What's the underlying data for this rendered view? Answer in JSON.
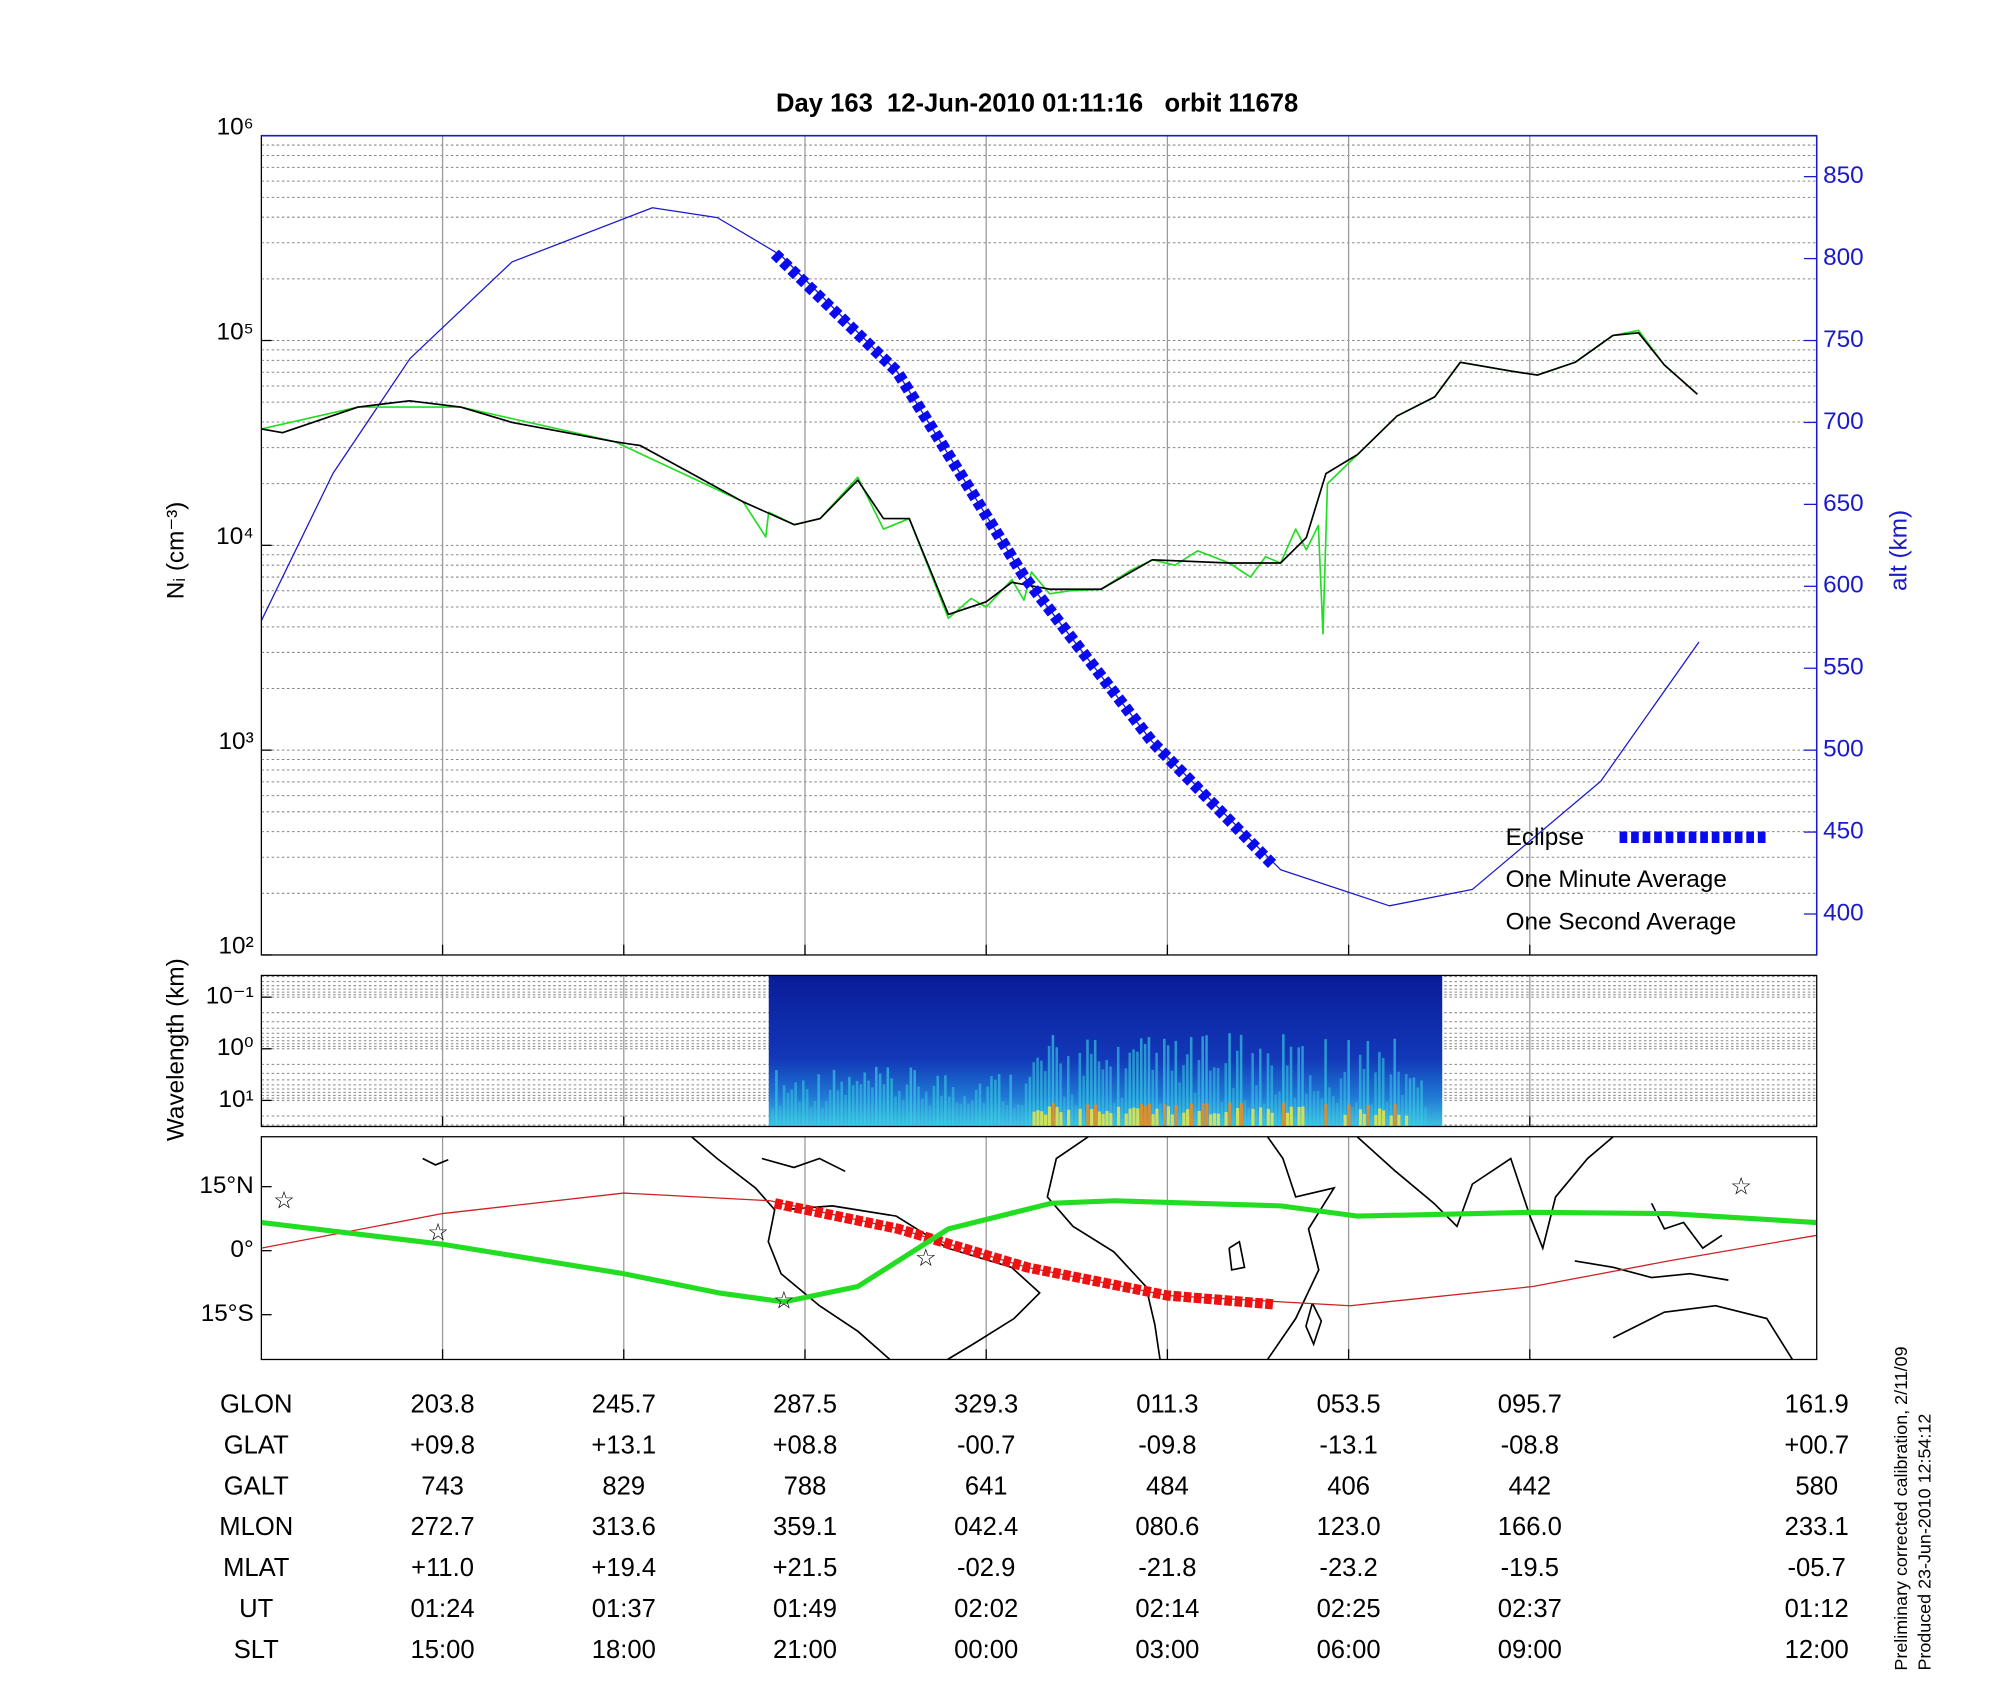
{
  "chart_data": [
    {
      "type": "line",
      "title": "Day 163  12-Jun-2010 01:11:16   orbit 11678",
      "ylabel": "Nᵢ (cm⁻³)",
      "y2label": "alt (km)",
      "log_y": true,
      "ylim": [
        100,
        1000000
      ],
      "yticks": [
        {
          "value": 100,
          "label": "10²"
        },
        {
          "value": 1000,
          "label": "10³"
        },
        {
          "value": 10000,
          "label": "10⁴"
        },
        {
          "value": 100000,
          "label": "10⁵"
        },
        {
          "value": 1000000,
          "label": "10⁶"
        }
      ],
      "y2lim": [
        375,
        875
      ],
      "y2ticks": [
        400,
        450,
        500,
        550,
        600,
        650,
        700,
        750,
        800,
        850
      ],
      "xlim": [
        0,
        103
      ],
      "xticks": [
        12,
        24,
        36,
        48,
        60,
        72,
        84
      ],
      "grid": true,
      "legend": "lower right",
      "series": [
        {
          "name": "Eclipse",
          "color": "#0a0aee",
          "axis": "y2",
          "dashed": true,
          "x": [
            34.0,
            42.1,
            50.5,
            59.0,
            67.1
          ],
          "values": [
            803,
            731,
            606,
            505,
            429
          ]
        },
        {
          "name": "One Minute Average",
          "color": "#000000",
          "x": [
            0,
            1.4,
            6.4,
            9.8,
            13.2,
            16.6,
            23.4,
            25.1,
            28.5,
            31.9,
            35.3,
            37.0,
            39.5,
            41.2,
            42.9,
            45.5,
            48.0,
            49.7,
            52.2,
            55.6,
            59.0,
            64.1,
            67.5,
            69.2,
            70.5,
            72.6,
            75.2,
            77.7,
            79.4,
            82.8,
            84.5,
            87.0,
            89.5,
            91.2,
            92.9,
            95.1
          ],
          "values": [
            37000,
            35500,
            47300,
            50800,
            47300,
            39800,
            32100,
            30700,
            22400,
            16300,
            12600,
            13500,
            20800,
            13500,
            13500,
            4600,
            5300,
            6600,
            6100,
            6100,
            8500,
            8200,
            8200,
            10900,
            22400,
            27800,
            42800,
            53100,
            78300,
            70800,
            67800,
            78300,
            106000,
            109000,
            76100,
            54600
          ]
        },
        {
          "name": "One Second Average",
          "color": "#22dd22",
          "x": [
            0,
            6.4,
            13.2,
            23.4,
            31.9,
            33.4,
            33.6,
            35.3,
            37.0,
            39.5,
            41.2,
            42.9,
            45.5,
            47.0,
            48.0,
            49.7,
            50.5,
            51.0,
            52.2,
            53.5,
            55.6,
            57.5,
            59.0,
            60.5,
            62.0,
            64.1,
            65.5,
            66.5,
            67.5,
            68.5,
            69.2,
            70.0,
            70.3,
            70.6,
            72.6,
            75.2,
            77.7,
            79.4,
            82.8,
            84.5,
            87.0,
            89.5,
            91.2,
            92.9,
            95.1
          ],
          "values": [
            37000,
            47300,
            47300,
            32100,
            16300,
            11000,
            14500,
            12600,
            13500,
            21500,
            12000,
            13500,
            4400,
            5500,
            5000,
            6800,
            5400,
            7400,
            5800,
            6000,
            6100,
            7500,
            8500,
            8000,
            9400,
            8200,
            7000,
            8800,
            8200,
            12000,
            9500,
            12500,
            3700,
            20000,
            27800,
            42800,
            53100,
            78300,
            70800,
            67800,
            78300,
            106000,
            112000,
            76100,
            54600
          ]
        },
        {
          "color": "#1a1acc",
          "axis": "y2",
          "x": [
            0,
            4.75,
            9.84,
            16.6,
            25.9,
            30.2,
            34.4,
            42.1,
            50.5,
            59.0,
            67.5,
            74.7,
            80.2,
            88.7,
            95.2
          ],
          "values": [
            579,
            669,
            739,
            798,
            831,
            825,
            802,
            731,
            606,
            505,
            427,
            405,
            415,
            481,
            566
          ]
        }
      ]
    },
    {
      "type": "spectrogram",
      "ylabel": "Wavelength (km)",
      "log_y": true,
      "y_inverted": true,
      "ylim": [
        0.038,
        32
      ],
      "yticks": [
        {
          "value": 0.1,
          "label": "10⁻¹"
        },
        {
          "value": 1,
          "label": "10⁰"
        },
        {
          "value": 10,
          "label": "10¹"
        }
      ],
      "xlim": [
        0,
        103
      ],
      "xticks": [
        12,
        24,
        36,
        48,
        60,
        72,
        84
      ],
      "x": [
        33.6,
        78.2
      ],
      "grid": true
    },
    {
      "type": "map",
      "ylim": [
        -25.5,
        26.7
      ],
      "yticks": [
        {
          "value": 15,
          "label": "15°N"
        },
        {
          "value": 0,
          "label": "0°"
        },
        {
          "value": -15,
          "label": "15°S"
        }
      ],
      "xlim": [
        0,
        103
      ],
      "xticks": [
        12,
        24,
        36,
        48,
        60,
        72,
        84
      ],
      "series": [
        {
          "color": "#cc2222",
          "width": 1,
          "x": [
            0,
            12,
            24,
            33.7,
            42.2,
            50.7,
            60.0,
            72.1,
            84.2,
            93.2,
            103
          ],
          "values": [
            0.6,
            8.7,
            13.5,
            11.7,
            5.1,
            -3.9,
            -10.5,
            -12.9,
            -8.4,
            -2.4,
            3.6
          ]
        },
        {
          "color": "#ee1111",
          "width": 8,
          "dashed": true,
          "x": [
            34.0,
            42.2,
            50.7,
            60.0,
            67.1
          ],
          "values": [
            11.1,
            5.1,
            -3.9,
            -10.5,
            -12.6
          ]
        },
        {
          "color": "#22dd22",
          "width": 4,
          "x": [
            0,
            12,
            24,
            30.3,
            34.6,
            39.5,
            45.5,
            52.3,
            56.5,
            67.5,
            72.6,
            84.2,
            93.2,
            103
          ],
          "values": [
            6.6,
            1.5,
            -5.4,
            -9.9,
            -12.0,
            -8.4,
            5.1,
            11.1,
            11.7,
            10.5,
            8.1,
            9.0,
            8.7,
            6.6
          ]
        }
      ],
      "markers": {
        "color": "#cc33cc",
        "x": [
          1.5,
          11.7,
          34.6,
          44.0,
          98.0
        ],
        "values": [
          11.4,
          3.9,
          -12.0,
          -2.1,
          14.7
        ]
      }
    }
  ],
  "table": {
    "rows": [
      [
        "GLON",
        "203.8",
        "245.7",
        "287.5",
        "329.3",
        "011.3",
        "053.5",
        "095.7",
        "161.9"
      ],
      [
        "GLAT",
        "+09.8",
        "+13.1",
        "+08.8",
        "-00.7",
        "-09.8",
        "-13.1",
        "-08.8",
        "+00.7"
      ],
      [
        "GALT",
        "743",
        "829",
        "788",
        "641",
        "484",
        "406",
        "442",
        "580"
      ],
      [
        "MLON",
        "272.7",
        "313.6",
        "359.1",
        "042.4",
        "080.6",
        "123.0",
        "166.0",
        "233.1"
      ],
      [
        "MLAT",
        "+11.0",
        "+19.4",
        "+21.5",
        "-02.9",
        "-21.8",
        "-23.2",
        "-19.5",
        "-05.7"
      ],
      [
        "UT",
        "01:24",
        "01:37",
        "01:49",
        "02:02",
        "02:14",
        "02:25",
        "02:37",
        "01:12"
      ],
      [
        "SLT",
        "15:00",
        "18:00",
        "21:00",
        "00:00",
        "03:00",
        "06:00",
        "09:00",
        "12:00"
      ]
    ]
  },
  "notes": [
    "Preliminary corrected calibration, 2/11/09",
    "Produced 23-Jun-2010 12:54:12"
  ]
}
